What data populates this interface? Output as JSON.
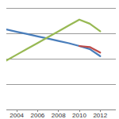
{
  "chart_data": {
    "type": "line",
    "x": [
      2003,
      2004,
      2005,
      2006,
      2007,
      2008,
      2009,
      2010,
      2011,
      2012
    ],
    "series": [
      {
        "color": "#4a7ebb",
        "values": [
          3.15,
          3.06,
          2.97,
          2.88,
          2.79,
          2.7,
          2.61,
          2.5,
          2.38,
          2.1
        ]
      },
      {
        "color": "#be4b48",
        "values": [
          null,
          null,
          null,
          null,
          null,
          null,
          null,
          2.5,
          2.46,
          2.24
        ]
      },
      {
        "color": "#98b954",
        "values": [
          1.93,
          2.16,
          2.39,
          2.62,
          2.85,
          3.08,
          3.31,
          3.54,
          3.38,
          3.08
        ]
      }
    ],
    "xlim": [
      2003,
      2013.5
    ],
    "xticks": [
      2004,
      2006,
      2008,
      2010,
      2012
    ],
    "ylim": [
      0,
      4
    ],
    "yticks": [
      0,
      1,
      2,
      3,
      4
    ],
    "grid": true,
    "tick_labels": "x"
  }
}
